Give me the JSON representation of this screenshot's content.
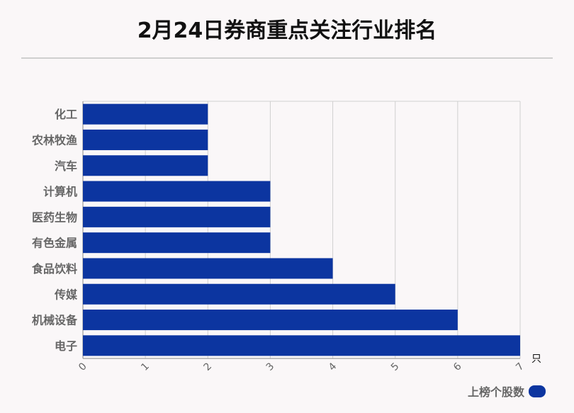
{
  "title": "2月24日券商重点关注行业排名",
  "chart_data": {
    "type": "bar",
    "orientation": "horizontal",
    "categories": [
      "化工",
      "农林牧渔",
      "汽车",
      "计算机",
      "医药生物",
      "有色金属",
      "食品饮料",
      "传媒",
      "机械设备",
      "电子"
    ],
    "series": [
      {
        "name": "上榜个股数",
        "values": [
          2,
          2,
          2,
          3,
          3,
          3,
          4,
          5,
          6,
          7
        ]
      }
    ],
    "xunit": "只",
    "xlim": [
      0,
      7
    ],
    "xticks": [
      0,
      1,
      2,
      3,
      4,
      5,
      6,
      7
    ],
    "grid": true,
    "legend_position": "bottom-right",
    "bar_color": "#0c35a0"
  }
}
